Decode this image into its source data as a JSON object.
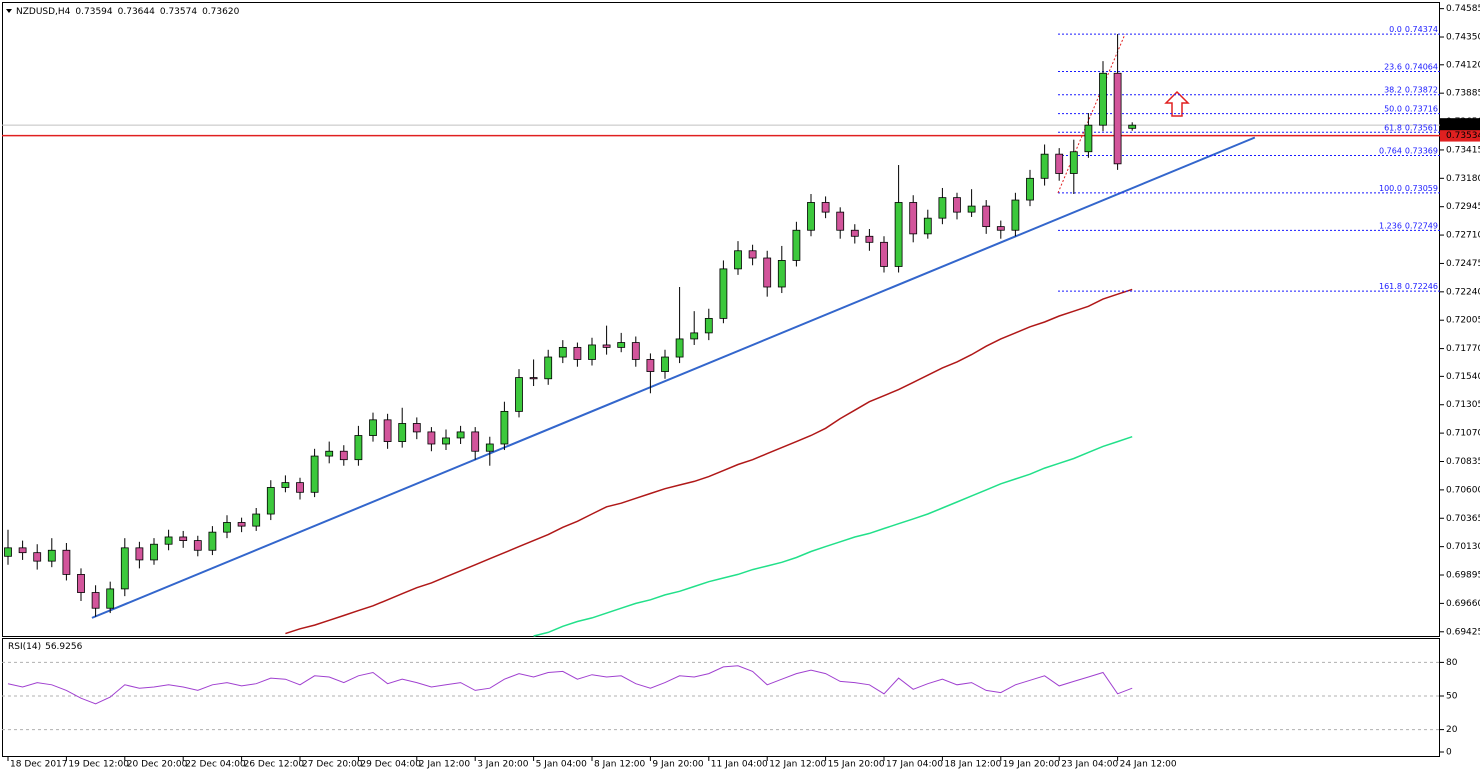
{
  "chart_data": [
    {
      "type": "candlestick",
      "title": "NZDUSD,H4",
      "categories": [
        "18 Dec 2017",
        null,
        null,
        null,
        "19 Dec 12:00",
        null,
        null,
        null,
        "20 Dec 20:00",
        null,
        null,
        null,
        "22 Dec 04:00",
        null,
        null,
        null,
        "26 Dec 12:00",
        null,
        null,
        null,
        "27 Dec 20:00",
        null,
        null,
        null,
        "29 Dec 04:00",
        null,
        null,
        null,
        "2 Jan 12:00",
        null,
        null,
        null,
        "3 Jan 20:00",
        null,
        null,
        null,
        "5 Jan 04:00",
        null,
        null,
        null,
        "8 Jan 12:00",
        null,
        null,
        null,
        "9 Jan 20:00",
        null,
        null,
        null,
        "11 Jan 04:00",
        null,
        null,
        null,
        "12 Jan 12:00",
        null,
        null,
        null,
        "15 Jan 20:00",
        null,
        null,
        null,
        "17 Jan 04:00",
        null,
        null,
        null,
        "18 Jan 12:00",
        null,
        null,
        null,
        "19 Jan 20:00",
        null,
        null,
        null,
        "23 Jan 04:00",
        null,
        null,
        null,
        "24 Jan 12:00",
        null
      ],
      "open": [
        0.7005,
        0.7012,
        0.7008,
        0.7001,
        0.701,
        0.699,
        0.6975,
        0.6962,
        0.6978,
        0.7012,
        0.7002,
        0.7015,
        0.7021,
        0.7018,
        0.701,
        0.7025,
        0.7033,
        0.703,
        0.704,
        0.7062,
        0.7066,
        0.7058,
        0.7088,
        0.7092,
        0.7085,
        0.7105,
        0.7118,
        0.71,
        0.7115,
        0.7108,
        0.7098,
        0.7103,
        0.7108,
        0.7092,
        0.7098,
        0.7125,
        0.7153,
        0.7152,
        0.717,
        0.7178,
        0.7168,
        0.718,
        0.7178,
        0.7182,
        0.7168,
        0.7158,
        0.717,
        0.7185,
        0.719,
        0.7202,
        0.7243,
        0.7258,
        0.7252,
        0.7228,
        0.725,
        0.7275,
        0.7298,
        0.729,
        0.7275,
        0.727,
        0.7265,
        0.7245,
        0.7298,
        0.7272,
        0.7285,
        0.7302,
        0.729,
        0.7295,
        0.7278,
        0.7275,
        0.73,
        0.7318,
        0.7338,
        0.7322,
        0.734,
        0.7362,
        0.7405,
        0.73594
      ],
      "high": [
        0.7027,
        0.7018,
        0.7015,
        0.702,
        0.7016,
        0.6995,
        0.6981,
        0.6984,
        0.702,
        0.7017,
        0.702,
        0.7027,
        0.7026,
        0.7022,
        0.703,
        0.7039,
        0.7037,
        0.7045,
        0.7068,
        0.7072,
        0.707,
        0.7094,
        0.71,
        0.7097,
        0.7113,
        0.7124,
        0.7123,
        0.7128,
        0.712,
        0.7112,
        0.711,
        0.7113,
        0.7112,
        0.7104,
        0.7133,
        0.716,
        0.7168,
        0.7176,
        0.7184,
        0.7182,
        0.7186,
        0.7196,
        0.719,
        0.7187,
        0.7173,
        0.7176,
        0.7228,
        0.7208,
        0.721,
        0.725,
        0.7266,
        0.7263,
        0.7258,
        0.7262,
        0.7282,
        0.7305,
        0.7303,
        0.7294,
        0.728,
        0.7276,
        0.727,
        0.7329,
        0.7304,
        0.7292,
        0.731,
        0.7306,
        0.7309,
        0.73,
        0.7283,
        0.7306,
        0.7325,
        0.7346,
        0.7343,
        0.735,
        0.7372,
        0.7415,
        0.74374,
        0.73644
      ],
      "low": [
        0.6998,
        0.7002,
        0.6994,
        0.6996,
        0.6985,
        0.6968,
        0.6955,
        0.6958,
        0.6972,
        0.6995,
        0.6998,
        0.701,
        0.7012,
        0.7005,
        0.7006,
        0.702,
        0.7025,
        0.7026,
        0.7035,
        0.7058,
        0.7052,
        0.7054,
        0.7082,
        0.708,
        0.708,
        0.71,
        0.7094,
        0.7095,
        0.7102,
        0.7092,
        0.7093,
        0.7098,
        0.7085,
        0.708,
        0.7093,
        0.712,
        0.7146,
        0.7147,
        0.7165,
        0.7162,
        0.7163,
        0.7172,
        0.7174,
        0.7162,
        0.714,
        0.7152,
        0.7165,
        0.718,
        0.7184,
        0.7198,
        0.7238,
        0.7246,
        0.722,
        0.7223,
        0.7245,
        0.727,
        0.7285,
        0.7268,
        0.7264,
        0.7258,
        0.724,
        0.724,
        0.7265,
        0.7268,
        0.728,
        0.7284,
        0.7286,
        0.7272,
        0.7268,
        0.727,
        0.7295,
        0.7312,
        0.7316,
        0.7305,
        0.7335,
        0.7357,
        0.7325,
        0.73574
      ],
      "close": [
        0.7012,
        0.7008,
        0.7001,
        0.701,
        0.699,
        0.6975,
        0.6962,
        0.6978,
        0.7012,
        0.7002,
        0.7015,
        0.7021,
        0.7018,
        0.701,
        0.7025,
        0.7033,
        0.703,
        0.704,
        0.7062,
        0.7066,
        0.7058,
        0.7088,
        0.7092,
        0.7085,
        0.7105,
        0.7118,
        0.71,
        0.7115,
        0.7108,
        0.7098,
        0.7103,
        0.7108,
        0.7092,
        0.7098,
        0.7125,
        0.7153,
        0.7152,
        0.717,
        0.7178,
        0.7168,
        0.718,
        0.7178,
        0.7182,
        0.7168,
        0.7158,
        0.717,
        0.7185,
        0.719,
        0.7202,
        0.7243,
        0.7258,
        0.7252,
        0.7228,
        0.725,
        0.7275,
        0.7298,
        0.729,
        0.7275,
        0.727,
        0.7265,
        0.7245,
        0.7298,
        0.7272,
        0.7285,
        0.7302,
        0.729,
        0.7295,
        0.7278,
        0.7275,
        0.73,
        0.7318,
        0.7338,
        0.7322,
        0.734,
        0.7362,
        0.7405,
        0.733,
        0.7362
      ],
      "up_color": "#3cc83c",
      "down_color": "#d2559b",
      "ylim": [
        0.6939,
        0.7464
      ],
      "yticks": [
        {
          "value": 0.74585,
          "label": "0.74585"
        },
        {
          "value": 0.7435,
          "label": "0.74350"
        },
        {
          "value": 0.7412,
          "label": "0.74120"
        },
        {
          "value": 0.73885,
          "label": "0.73885"
        },
        {
          "value": 0.7365,
          "label": "0.73650"
        },
        {
          "value": 0.73415,
          "label": "0.73415"
        },
        {
          "value": 0.7318,
          "label": "0.73180"
        },
        {
          "value": 0.72945,
          "label": "0.72945"
        },
        {
          "value": 0.7271,
          "label": "0.72710"
        },
        {
          "value": 0.72475,
          "label": "0.72475"
        },
        {
          "value": 0.7224,
          "label": "0.72240"
        },
        {
          "value": 0.72005,
          "label": "0.72005"
        },
        {
          "value": 0.7177,
          "label": "0.71770"
        },
        {
          "value": 0.7154,
          "label": "0.71540"
        },
        {
          "value": 0.71305,
          "label": "0.71305"
        },
        {
          "value": 0.7107,
          "label": "0.71070"
        },
        {
          "value": 0.70835,
          "label": "0.70835"
        },
        {
          "value": 0.706,
          "label": "0.70600"
        },
        {
          "value": 0.70365,
          "label": "0.70365"
        },
        {
          "value": 0.7013,
          "label": "0.70130"
        },
        {
          "value": 0.69895,
          "label": "0.69895"
        },
        {
          "value": 0.6966,
          "label": "0.69660"
        },
        {
          "value": 0.69425,
          "label": "0.69425"
        }
      ],
      "overlays": [
        {
          "color": "#b01818",
          "values": [
            null,
            null,
            null,
            null,
            null,
            null,
            null,
            null,
            null,
            null,
            null,
            null,
            null,
            null,
            null,
            null,
            null,
            null,
            null,
            0.6941,
            0.6945,
            0.6948,
            0.6952,
            0.6956,
            0.696,
            0.6964,
            0.6969,
            0.6974,
            0.6979,
            0.6983,
            0.6988,
            0.6993,
            0.6998,
            0.7003,
            0.7008,
            0.7013,
            0.7018,
            0.7023,
            0.7029,
            0.7034,
            0.704,
            0.7046,
            0.7049,
            0.7053,
            0.7057,
            0.7061,
            0.7064,
            0.7067,
            0.7071,
            0.7076,
            0.7081,
            0.7085,
            0.709,
            0.7095,
            0.71,
            0.7105,
            0.7111,
            0.7119,
            0.7126,
            0.7133,
            0.7138,
            0.7143,
            0.7149,
            0.7155,
            0.7161,
            0.7166,
            0.7172,
            0.7179,
            0.7185,
            0.719,
            0.7195,
            0.7199,
            0.7204,
            0.7208,
            0.7212,
            0.7218,
            0.7222,
            0.7226
          ]
        },
        {
          "color": "#22e08a",
          "values": [
            null,
            null,
            null,
            null,
            null,
            null,
            null,
            null,
            null,
            null,
            null,
            null,
            null,
            null,
            null,
            null,
            null,
            null,
            null,
            null,
            null,
            null,
            null,
            null,
            null,
            null,
            null,
            null,
            null,
            null,
            null,
            null,
            null,
            null,
            null,
            null,
            0.6939,
            0.6942,
            0.6947,
            0.6951,
            0.6954,
            0.6958,
            0.6962,
            0.6966,
            0.6969,
            0.6973,
            0.6976,
            0.698,
            0.6984,
            0.6987,
            0.699,
            0.6994,
            0.6997,
            0.7,
            0.7004,
            0.7009,
            0.7013,
            0.7017,
            0.7021,
            0.7024,
            0.7028,
            0.7032,
            0.7036,
            0.704,
            0.7045,
            0.705,
            0.7055,
            0.706,
            0.7065,
            0.7069,
            0.7073,
            0.7078,
            0.7082,
            0.7086,
            0.7091,
            0.7096,
            0.71,
            0.7104
          ]
        }
      ],
      "trendline": {
        "color": "#3366cc",
        "x": [
          5.75,
          85.4
        ],
        "values": [
          0.6954,
          0.73518
        ]
      },
      "support": {
        "color": "#e02020",
        "value": 0.73534
      },
      "last_price": {
        "value": 0.7362,
        "label": "0.73620"
      },
      "fibonacci": {
        "color": "#1a1aff",
        "levels": [
          "0.0",
          "23.6",
          "38.2",
          "50.0",
          "61.8",
          "0.764",
          "100.0",
          "1.236",
          "161.8"
        ],
        "values": [
          0.74374,
          0.74064,
          0.73872,
          0.73716,
          0.73561,
          0.73369,
          0.73059,
          0.72749,
          0.72246
        ]
      }
    },
    {
      "type": "line",
      "title": "RSI(14)",
      "color": "#a040d0",
      "values": [
        61,
        58,
        62,
        60,
        55,
        48,
        43,
        49,
        60,
        57,
        58,
        60,
        58,
        55,
        60,
        62,
        59,
        61,
        66,
        65,
        60,
        68,
        67,
        62,
        68,
        71,
        61,
        65,
        62,
        58,
        60,
        62,
        55,
        57,
        65,
        70,
        67,
        71,
        72,
        65,
        69,
        67,
        68,
        61,
        57,
        62,
        68,
        67,
        70,
        76,
        77,
        72,
        60,
        65,
        70,
        73,
        70,
        63,
        62,
        60,
        52,
        66,
        56,
        61,
        65,
        60,
        62,
        55,
        53,
        60,
        64,
        68,
        59,
        63,
        67,
        71,
        52,
        56.9256
      ],
      "ylim": [
        0,
        100
      ],
      "yticks": [
        0,
        20,
        50,
        80
      ],
      "grid": true
    }
  ]
}
